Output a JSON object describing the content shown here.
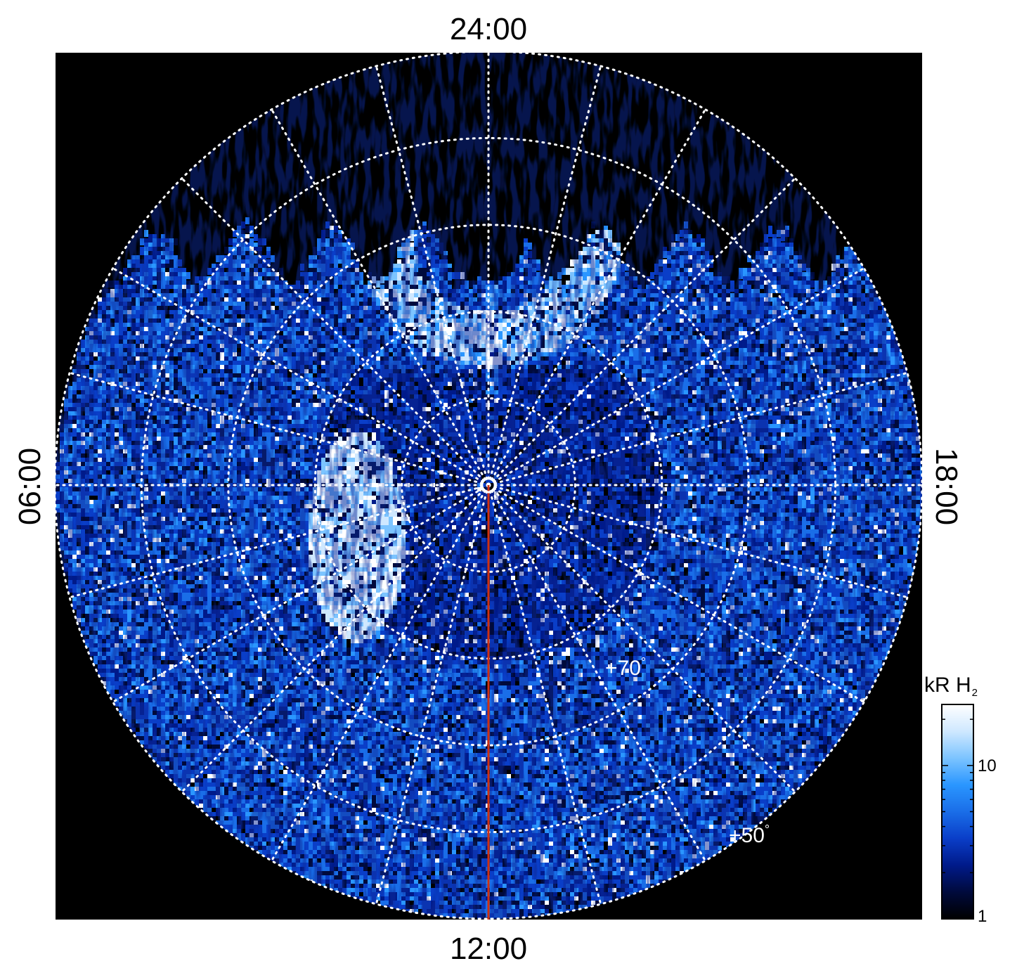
{
  "time_labels": {
    "top": "24:00",
    "bottom": "12:00",
    "left": "06:00",
    "right": "18:00"
  },
  "latitude_labels": [
    {
      "text": "+70",
      "deg_symbol": "°",
      "latitude": 70
    },
    {
      "text": "+50",
      "deg_symbol": "°",
      "latitude": 50
    }
  ],
  "colorbar": {
    "unit": "kR H",
    "unit_subscript": "2",
    "scale": "log",
    "range": [
      1,
      25
    ],
    "ticks": [
      {
        "value": 1,
        "label": "1"
      },
      {
        "value": 10,
        "label": "10"
      }
    ],
    "colors": [
      "#000000",
      "#000a3c",
      "#001a8a",
      "#0a3ec8",
      "#1a6ee8",
      "#2a96ff",
      "#7cc4ff",
      "#cfe8ff",
      "#ffffff"
    ]
  },
  "colors": {
    "background": "#000000",
    "grid": "#ffffff",
    "meridian_line": "#d03010",
    "pole_marker": "#ffffff"
  },
  "projection": {
    "type": "polar",
    "pole_latitude": 90,
    "outer_latitude": 40,
    "latitude_circles": [
      50,
      60,
      70,
      80
    ],
    "longitude_spacing_hours": 1
  }
}
